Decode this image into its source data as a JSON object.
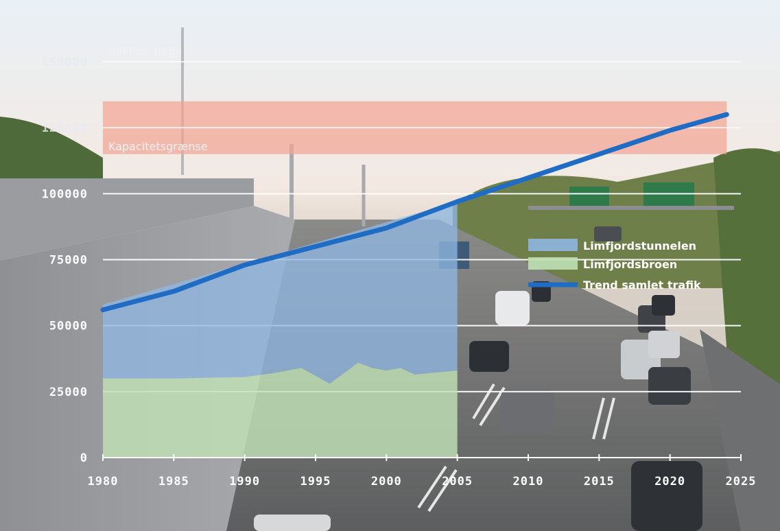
{
  "chart_data": {
    "type": "area",
    "ylabel": "Biler pr. døgn",
    "capacity_label": "Kapacitetsgrænse",
    "capacity_band": [
      115000,
      135000
    ],
    "xlim": [
      1980,
      2025
    ],
    "ylim": [
      0,
      150000
    ],
    "x_ticks": [
      "1980",
      "1985",
      "1990",
      "1995",
      "2000",
      "2005",
      "2010",
      "2015",
      "2020",
      "2025"
    ],
    "y_ticks": [
      "0",
      "25000",
      "50000",
      "75000",
      "100000",
      "125000",
      "150000"
    ],
    "grid": true,
    "legend_position": "right",
    "series": [
      {
        "name": "Limfjordstunnelen",
        "kind": "area",
        "color": "#8fb6e0",
        "x": [
          1980,
          2005
        ],
        "y": [
          58000,
          97000
        ]
      },
      {
        "name": "Limfjordsbroen",
        "kind": "area",
        "color": "#bfe0b4",
        "x": [
          1980,
          1985,
          1990,
          1992,
          1994,
          1995,
          1996,
          1997,
          1998,
          1999,
          2000,
          2001,
          2002,
          2003,
          2004,
          2005
        ],
        "y": [
          30000,
          30000,
          30500,
          32000,
          34000,
          31000,
          28000,
          32000,
          36000,
          34000,
          33000,
          34000,
          31500,
          32000,
          32500,
          33000
        ]
      },
      {
        "name": "Trend samlet trafik",
        "kind": "line",
        "color": "#1f6cc4",
        "x": [
          1980,
          1985,
          1990,
          2000,
          2005,
          2010,
          2015,
          2020,
          2024
        ],
        "y": [
          56000,
          63000,
          73000,
          87000,
          97000,
          106000,
          115000,
          124000,
          130000
        ]
      }
    ]
  }
}
